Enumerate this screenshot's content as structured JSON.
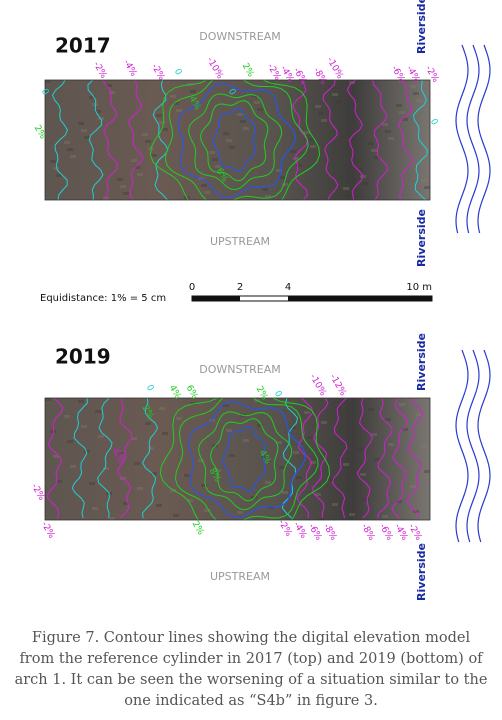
{
  "panels": [
    {
      "year": "2017",
      "top_label": "DOWNSTREAM",
      "bottom_label": "UPSTREAM",
      "side_labels": [
        "Riverside",
        "Riverside"
      ],
      "contour_labels": [
        "-2%",
        "-4%",
        "-2%",
        "0",
        "-10%",
        "2%",
        "-2%",
        "-4%",
        "-6%",
        "-8%",
        "-10%",
        "-6%",
        "-4%",
        "-2%",
        "0",
        "2%",
        "0",
        "4%",
        "6%",
        "0"
      ]
    },
    {
      "year": "2019",
      "top_label": "DOWNSTREAM",
      "bottom_label": "UPSTREAM",
      "side_labels": [
        "Riverside",
        "Riverside"
      ],
      "contour_labels": [
        "0",
        "4%",
        "6%",
        "2%",
        "0",
        "-10%",
        "-12%",
        "-8%",
        "-2%",
        "-2%",
        "2%",
        "-2%",
        "-4%",
        "-6%",
        "-8%",
        "-8%",
        "-6%",
        "-4%",
        "-2%",
        "4%",
        "8%",
        "2%"
      ]
    }
  ],
  "scale": {
    "equidistance": "Equidistance: 1% = 5 cm",
    "ticks": [
      "0",
      "2",
      "4",
      "10 m"
    ]
  },
  "caption": "Figure 7. Contour lines showing the digital elevation model from the reference cylinder in 2017 (top) and 2019 (bottom) of arch 1. It can be seen the worsening of a situation similar to the one indicated as “S4b” in figure 3."
}
